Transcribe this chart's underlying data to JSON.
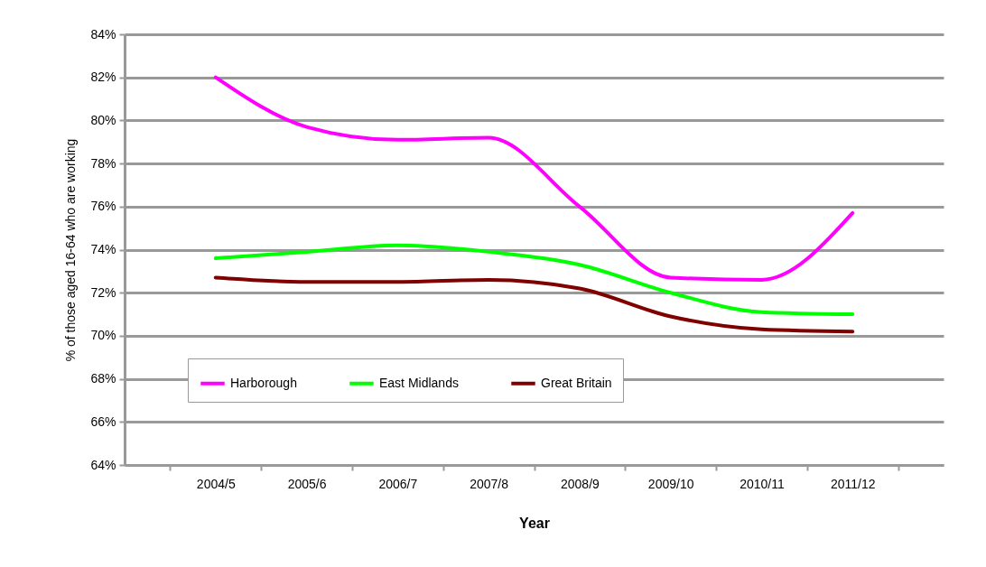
{
  "chart_data": {
    "type": "line",
    "xlabel": "Year",
    "ylabel": "% of those aged 16-64 who are working",
    "categories": [
      "2004/5",
      "2005/6",
      "2006/7",
      "2007/8",
      "2008/9",
      "2009/10",
      "2010/11",
      "2011/12"
    ],
    "series": [
      {
        "name": "Harborough",
        "color": "#ff00ff",
        "values": [
          82.0,
          79.7,
          79.1,
          79.2,
          76.0,
          72.7,
          72.6,
          75.7
        ]
      },
      {
        "name": "East Midlands",
        "color": "#00ff00",
        "values": [
          73.6,
          73.9,
          74.2,
          73.9,
          73.3,
          72.0,
          71.1,
          71.0
        ]
      },
      {
        "name": "Great Britain",
        "color": "#800000",
        "values": [
          72.7,
          72.5,
          72.5,
          72.6,
          72.2,
          70.9,
          70.3,
          70.2
        ]
      }
    ],
    "ylim": [
      64,
      84
    ],
    "yticks": [
      {
        "value": 64,
        "label": "64%"
      },
      {
        "value": 66,
        "label": "66%"
      },
      {
        "value": 68,
        "label": "68%"
      },
      {
        "value": 70,
        "label": "70%"
      },
      {
        "value": 72,
        "label": "72%"
      },
      {
        "value": 74,
        "label": "74%"
      },
      {
        "value": 76,
        "label": "76%"
      },
      {
        "value": 78,
        "label": "78%"
      },
      {
        "value": 80,
        "label": "80%"
      },
      {
        "value": 82,
        "label": "82%"
      },
      {
        "value": 84,
        "label": "84%"
      }
    ],
    "grid": "y",
    "legend": "bottom left",
    "marker": "none",
    "line_style": "solid"
  }
}
